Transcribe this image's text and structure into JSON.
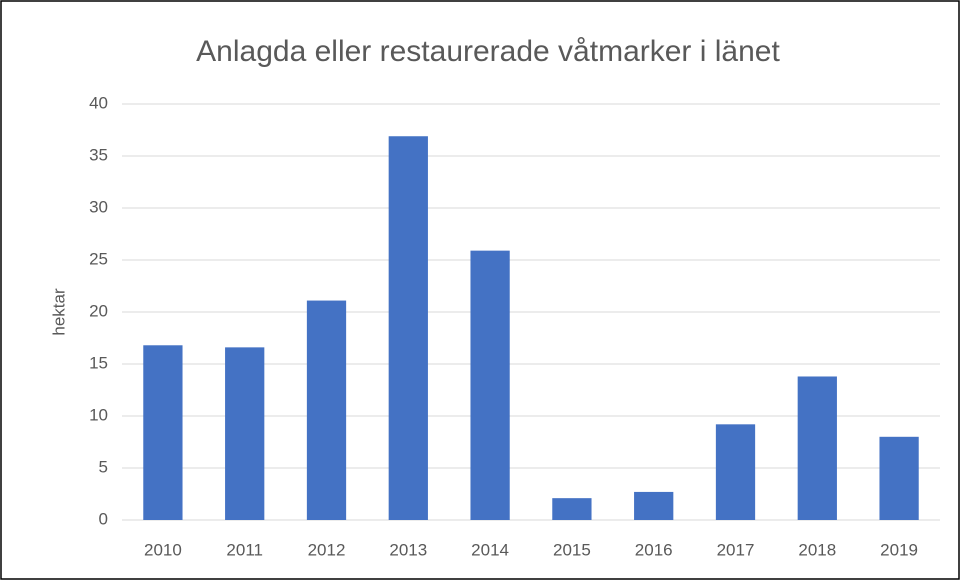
{
  "chart_data": {
    "type": "bar",
    "title": "Anlagda eller restaurerade våtmarker i länet",
    "y_label": "hektar",
    "categories": [
      "2010",
      "2011",
      "2012",
      "2013",
      "2014",
      "2015",
      "2016",
      "2017",
      "2018",
      "2019"
    ],
    "values": [
      16.8,
      16.6,
      21.1,
      36.9,
      25.9,
      2.1,
      2.7,
      9.2,
      13.8,
      8.0
    ],
    "color": "#4472c4",
    "ylim": [
      0,
      40
    ],
    "yticks": [
      0,
      5,
      10,
      15,
      20,
      25,
      30,
      35,
      40
    ],
    "grid": true
  }
}
